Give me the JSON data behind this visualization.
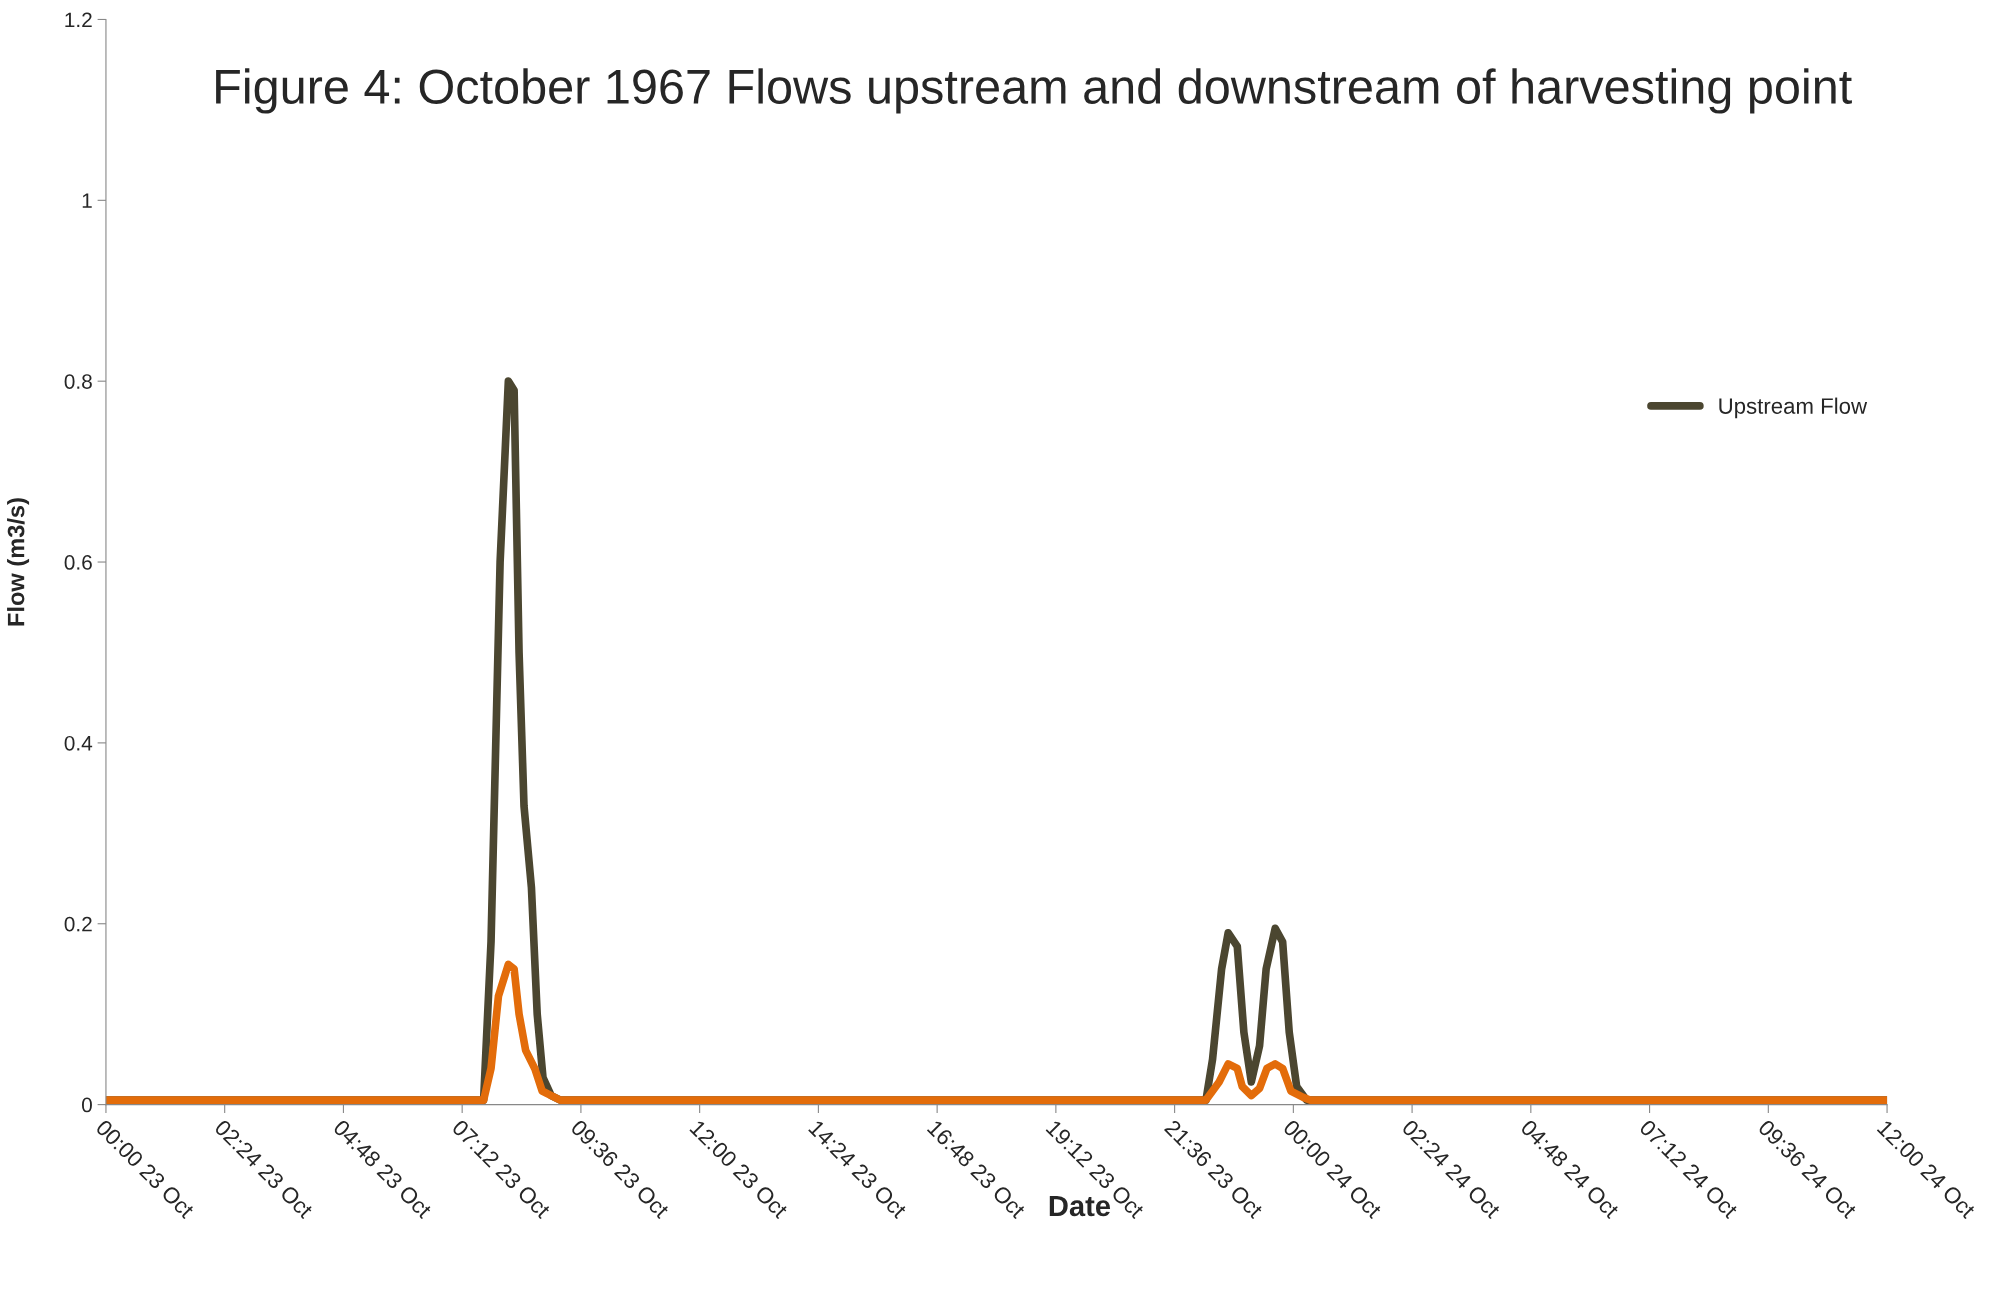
{
  "chart_data": {
    "type": "line",
    "title": "Figure 4: October 1967 Flows upstream and downstream of harvesting point",
    "xlabel": "Date",
    "ylabel": "Flow (m3/s)",
    "series": [
      {
        "name": "Upstream Flow",
        "color": "#4b4630",
        "x": [
          "1967-10-23T00:00",
          "1967-10-23T07:38",
          "1967-10-23T07:47",
          "1967-10-23T07:58",
          "1967-10-23T08:08",
          "1967-10-23T08:15",
          "1967-10-23T08:21",
          "1967-10-23T08:27",
          "1967-10-23T08:36",
          "1967-10-23T08:43",
          "1967-10-23T08:50",
          "1967-10-23T09:00",
          "1967-10-23T09:11",
          "1967-10-23T22:14",
          "1967-10-23T22:22",
          "1967-10-23T22:33",
          "1967-10-23T22:41",
          "1967-10-23T22:52",
          "1967-10-23T23:00",
          "1967-10-23T23:09",
          "1967-10-23T23:19",
          "1967-10-23T23:27",
          "1967-10-23T23:38",
          "1967-10-23T23:47",
          "1967-10-23T23:55",
          "1967-10-24T00:04",
          "1967-10-24T00:16",
          "1967-10-24T12:00"
        ],
        "values": [
          0.005,
          0.005,
          0.18,
          0.6,
          0.8,
          0.79,
          0.5,
          0.33,
          0.24,
          0.1,
          0.03,
          0.01,
          0.005,
          0.005,
          0.05,
          0.15,
          0.19,
          0.175,
          0.08,
          0.025,
          0.065,
          0.15,
          0.195,
          0.18,
          0.08,
          0.02,
          0.005,
          0.005
        ]
      },
      {
        "color": "#e36c0a",
        "x": [
          "1967-10-23T00:00",
          "1967-10-23T07:38",
          "1967-10-23T07:47",
          "1967-10-23T07:56",
          "1967-10-23T08:08",
          "1967-10-23T08:15",
          "1967-10-23T08:21",
          "1967-10-23T08:29",
          "1967-10-23T08:40",
          "1967-10-23T08:49",
          "1967-10-23T09:00",
          "1967-10-23T09:11",
          "1967-10-23T22:14",
          "1967-10-23T22:22",
          "1967-10-23T22:30",
          "1967-10-23T22:41",
          "1967-10-23T22:52",
          "1967-10-23T22:58",
          "1967-10-23T23:09",
          "1967-10-23T23:19",
          "1967-10-23T23:28",
          "1967-10-23T23:38",
          "1967-10-23T23:47",
          "1967-10-23T23:57",
          "1967-10-24T00:12",
          "1967-10-24T00:20",
          "1967-10-24T12:00"
        ],
        "values": [
          0.005,
          0.005,
          0.04,
          0.12,
          0.155,
          0.15,
          0.1,
          0.06,
          0.04,
          0.015,
          0.01,
          0.005,
          0.005,
          0.015,
          0.025,
          0.045,
          0.04,
          0.02,
          0.01,
          0.018,
          0.04,
          0.045,
          0.04,
          0.015,
          0.008,
          0.005,
          0.005
        ]
      }
    ],
    "xlim": [
      "1967-10-23T00:00",
      "1967-10-24T12:00"
    ],
    "ylim": [
      0,
      1.2
    ],
    "xticks": [
      {
        "value": "1967-10-23T00:00",
        "label": "00:00 23 Oct"
      },
      {
        "value": "1967-10-23T02:24",
        "label": "02:24 23 Oct"
      },
      {
        "value": "1967-10-23T04:48",
        "label": "04:48 23 Oct"
      },
      {
        "value": "1967-10-23T07:12",
        "label": "07:12 23 Oct"
      },
      {
        "value": "1967-10-23T09:36",
        "label": "09:36 23 Oct"
      },
      {
        "value": "1967-10-23T12:00",
        "label": "12:00 23 Oct"
      },
      {
        "value": "1967-10-23T14:24",
        "label": "14:24 23 Oct"
      },
      {
        "value": "1967-10-23T16:48",
        "label": "16:48 23 Oct"
      },
      {
        "value": "1967-10-23T19:12",
        "label": "19:12 23 Oct"
      },
      {
        "value": "1967-10-23T21:36",
        "label": "21:36 23 Oct"
      },
      {
        "value": "1967-10-24T00:00",
        "label": "00:00 24 Oct"
      },
      {
        "value": "1967-10-24T02:24",
        "label": "02:24 24 Oct"
      },
      {
        "value": "1967-10-24T04:48",
        "label": "04:48 24 Oct"
      },
      {
        "value": "1967-10-24T07:12",
        "label": "07:12 24 Oct"
      },
      {
        "value": "1967-10-24T09:36",
        "label": "09:36 24 Oct"
      },
      {
        "value": "1967-10-24T12:00",
        "label": "12:00 24 Oct"
      }
    ],
    "yticks": [
      0,
      0.2,
      0.4,
      0.6,
      0.8,
      1,
      1.2
    ],
    "grid": false,
    "legend": "top right",
    "marker": "none",
    "line_style": "solid"
  }
}
